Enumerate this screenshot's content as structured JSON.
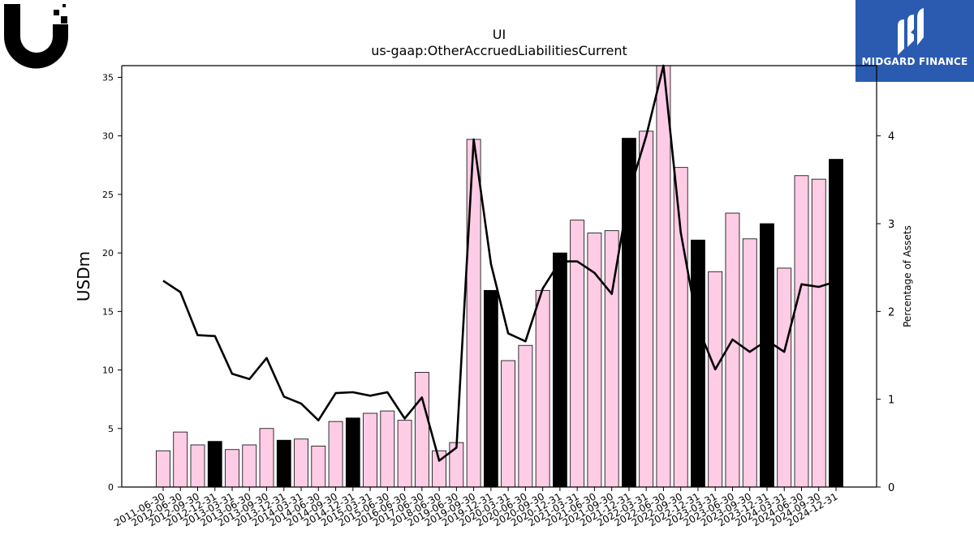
{
  "logos": {
    "left_icon": "ubiquiti-u-logo",
    "right_icon": "midgard-finance-logo",
    "right_text": "MIDGARD FINANCE",
    "right_bg_color": "#2a5bb0"
  },
  "chart_data": {
    "type": "bar",
    "title": "UI",
    "subtitle": "us-gaap:OtherAccruedLiabilitiesCurrent",
    "ylabel": "USDm",
    "y2label": "Percentage of Assets",
    "ylim": [
      0,
      36
    ],
    "y2lim": [
      0,
      4.8
    ],
    "yticks": [
      0,
      5,
      10,
      15,
      20,
      25,
      30,
      35
    ],
    "y2ticks": [
      0,
      1,
      2,
      3,
      4
    ],
    "colors": {
      "bar_pink": "#ffcce6",
      "bar_black": "#000000",
      "line": "#000000"
    },
    "categories": [
      "2011-06-30",
      "2012-06-30",
      "2012-09-30",
      "2012-12-31",
      "2013-03-31",
      "2013-06-30",
      "2013-09-30",
      "2013-12-31",
      "2014-03-31",
      "2014-06-30",
      "2014-09-30",
      "2014-12-31",
      "2015-03-31",
      "2015-06-30",
      "2016-06-30",
      "2017-06-30",
      "2018-06-30",
      "2019-06-30",
      "2019-09-30",
      "2019-12-31",
      "2020-03-31",
      "2020-06-30",
      "2020-09-30",
      "2020-12-31",
      "2021-03-31",
      "2021-06-30",
      "2021-09-30",
      "2021-12-31",
      "2022-03-31",
      "2022-06-30",
      "2022-09-30",
      "2022-12-31",
      "2023-03-31",
      "2023-06-30",
      "2023-09-30",
      "2023-12-31",
      "2024-03-31",
      "2024-06-30",
      "2024-09-30",
      "2024-12-31"
    ],
    "series": [
      {
        "type": "bar",
        "values": [
          3.1,
          4.7,
          3.6,
          3.9,
          3.2,
          3.6,
          5.0,
          4.0,
          4.1,
          3.5,
          5.6,
          5.9,
          6.3,
          6.5,
          5.7,
          9.8,
          3.1,
          3.8,
          29.7,
          16.8,
          10.8,
          12.1,
          16.8,
          20.0,
          22.8,
          21.7,
          21.9,
          29.8,
          30.4,
          36.0,
          27.3,
          21.1,
          18.4,
          23.4,
          21.2,
          22.5,
          18.7,
          26.6,
          26.3,
          28.0
        ],
        "highlight": [
          false,
          false,
          false,
          true,
          false,
          false,
          false,
          true,
          false,
          false,
          false,
          true,
          false,
          false,
          false,
          false,
          false,
          false,
          false,
          true,
          false,
          false,
          false,
          true,
          false,
          false,
          false,
          true,
          false,
          false,
          false,
          true,
          false,
          false,
          false,
          true,
          false,
          false,
          false,
          true
        ]
      },
      {
        "type": "line",
        "axis": "right",
        "values": [
          2.35,
          2.22,
          1.73,
          1.72,
          1.29,
          1.23,
          1.47,
          1.03,
          0.95,
          0.76,
          1.07,
          1.08,
          1.04,
          1.08,
          0.78,
          1.02,
          0.3,
          0.45,
          3.96,
          2.54,
          1.75,
          1.66,
          2.26,
          2.57,
          2.57,
          2.44,
          2.2,
          3.35,
          4.0,
          5.0,
          2.9,
          1.82,
          1.34,
          1.68,
          1.54,
          1.67,
          1.54,
          2.31,
          2.28,
          2.34
        ]
      }
    ]
  }
}
